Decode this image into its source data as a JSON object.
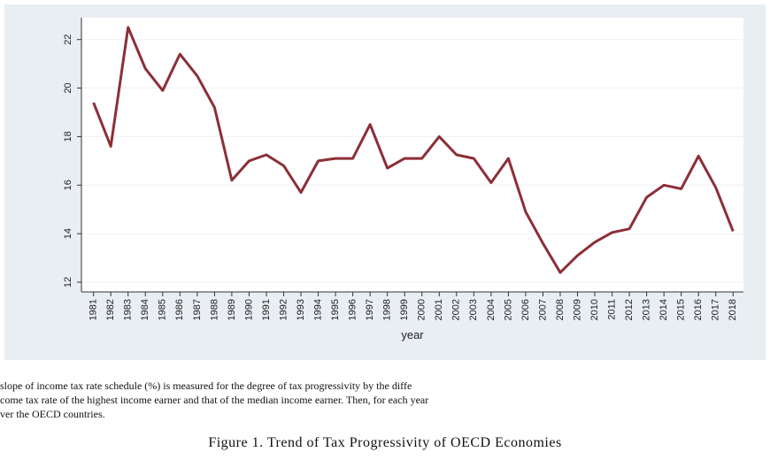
{
  "chart_data": {
    "type": "line",
    "x_label": "year",
    "x": [
      1981,
      1982,
      1983,
      1984,
      1985,
      1986,
      1987,
      1988,
      1989,
      1990,
      1991,
      1992,
      1993,
      1994,
      1995,
      1996,
      1997,
      1998,
      1999,
      2000,
      2001,
      2002,
      2003,
      2004,
      2005,
      2006,
      2007,
      2008,
      2009,
      2010,
      2011,
      2012,
      2013,
      2014,
      2015,
      2016,
      2017,
      2018
    ],
    "values": [
      19.4,
      17.6,
      22.5,
      20.8,
      19.9,
      21.4,
      20.5,
      19.2,
      16.2,
      17.0,
      17.25,
      16.8,
      15.7,
      17.0,
      17.1,
      17.1,
      18.5,
      16.7,
      17.1,
      17.1,
      18.0,
      17.25,
      17.1,
      16.1,
      17.1,
      14.9,
      13.6,
      12.4,
      13.1,
      13.65,
      14.05,
      14.2,
      15.5,
      16.0,
      15.85,
      17.2,
      15.9,
      14.1
    ],
    "color": "#8c2f37",
    "xlim": [
      1980.3,
      2018.6
    ],
    "xticks": [
      1981,
      1982,
      1983,
      1984,
      1985,
      1986,
      1987,
      1988,
      1989,
      1990,
      1991,
      1992,
      1993,
      1994,
      1995,
      1996,
      1997,
      1998,
      1999,
      2000,
      2001,
      2002,
      2003,
      2004,
      2005,
      2006,
      2007,
      2008,
      2009,
      2010,
      2011,
      2012,
      2013,
      2014,
      2015,
      2016,
      2017,
      2018
    ],
    "ylim": [
      11.6,
      22.9
    ],
    "yticks": [
      12,
      14,
      16,
      18,
      20,
      22
    ],
    "grid": true
  },
  "notes": [
    "slope of income tax rate schedule (%) is measured for the degree of tax progressivity by the diffe",
    "come tax rate of the highest income earner and that of the median income earner. Then, for each year",
    "ver the OECD countries."
  ],
  "caption": "Figure 1. Trend of Tax Progressivity of OECD Economies"
}
